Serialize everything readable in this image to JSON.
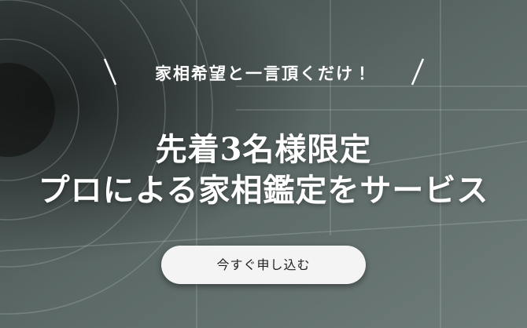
{
  "banner": {
    "tagline": "家相希望と一言頂くだけ！",
    "headline": [
      "先着3名様限定",
      "プロによる家相鑑定をサービス"
    ],
    "button": "今すぐ申し込む"
  }
}
